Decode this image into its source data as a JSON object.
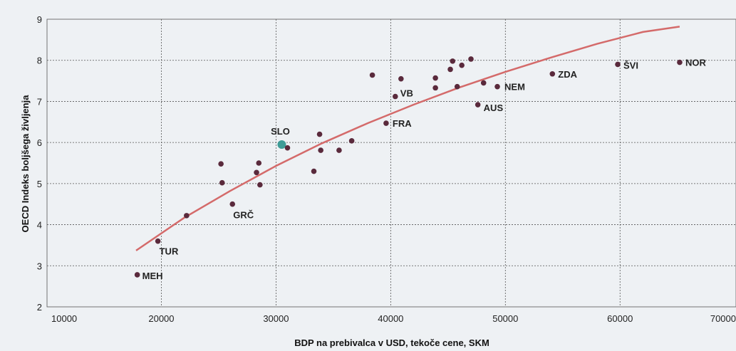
{
  "chart_data": {
    "type": "scatter",
    "title": "",
    "xlabel": "BDP na prebivalca v USD, tekoče cene, SKM",
    "ylabel": "OECD Indeks boljšega življenja",
    "xlim": [
      10000,
      70000
    ],
    "ylim": [
      2,
      9
    ],
    "xticks": [
      "10000",
      "20000",
      "30000",
      "40000",
      "50000",
      "60000",
      "70000"
    ],
    "yticks": [
      "2",
      "3",
      "4",
      "5",
      "6",
      "7",
      "8",
      "9"
    ],
    "grid": true,
    "colors": {
      "points": "#5a2a3c",
      "highlight": "#3e9c97",
      "trend": "#d46a6a",
      "grid": "#555555"
    },
    "points": [
      {
        "x": 17900,
        "y": 2.78,
        "label": "MEH"
      },
      {
        "x": 19700,
        "y": 3.6,
        "label": "TUR"
      },
      {
        "x": 22200,
        "y": 4.22,
        "label": ""
      },
      {
        "x": 25200,
        "y": 5.48,
        "label": ""
      },
      {
        "x": 25300,
        "y": 5.02,
        "label": ""
      },
      {
        "x": 26200,
        "y": 4.5,
        "label": "GRČ"
      },
      {
        "x": 28300,
        "y": 5.27,
        "label": ""
      },
      {
        "x": 28500,
        "y": 5.5,
        "label": ""
      },
      {
        "x": 28600,
        "y": 4.97,
        "label": ""
      },
      {
        "x": 30500,
        "y": 5.95,
        "label": "SLO",
        "highlight": true
      },
      {
        "x": 31000,
        "y": 5.87,
        "label": ""
      },
      {
        "x": 33300,
        "y": 5.3,
        "label": ""
      },
      {
        "x": 33800,
        "y": 6.2,
        "label": ""
      },
      {
        "x": 33900,
        "y": 5.81,
        "label": ""
      },
      {
        "x": 35500,
        "y": 5.81,
        "label": ""
      },
      {
        "x": 36600,
        "y": 6.04,
        "label": ""
      },
      {
        "x": 38400,
        "y": 7.64,
        "label": ""
      },
      {
        "x": 39600,
        "y": 6.47,
        "label": "FRA"
      },
      {
        "x": 40400,
        "y": 7.12,
        "label": "VB"
      },
      {
        "x": 40900,
        "y": 7.55,
        "label": ""
      },
      {
        "x": 43900,
        "y": 7.57,
        "label": ""
      },
      {
        "x": 43900,
        "y": 7.33,
        "label": ""
      },
      {
        "x": 45200,
        "y": 7.78,
        "label": ""
      },
      {
        "x": 45400,
        "y": 7.98,
        "label": ""
      },
      {
        "x": 45800,
        "y": 7.36,
        "label": ""
      },
      {
        "x": 46200,
        "y": 7.88,
        "label": ""
      },
      {
        "x": 47000,
        "y": 8.03,
        "label": ""
      },
      {
        "x": 47600,
        "y": 6.92,
        "label": "AUS"
      },
      {
        "x": 48100,
        "y": 7.45,
        "label": ""
      },
      {
        "x": 49300,
        "y": 7.36,
        "label": "NEM"
      },
      {
        "x": 54100,
        "y": 7.67,
        "label": "ZDA"
      },
      {
        "x": 59800,
        "y": 7.9,
        "label": "ŠVI"
      },
      {
        "x": 65200,
        "y": 7.95,
        "label": "NOR"
      }
    ],
    "trendline": {
      "type": "logarithmic",
      "x": [
        17800,
        22000,
        26000,
        30000,
        34000,
        38000,
        42000,
        46000,
        50000,
        54000,
        58000,
        62000,
        65200
      ],
      "y": [
        3.37,
        4.17,
        4.82,
        5.43,
        5.98,
        6.47,
        6.92,
        7.34,
        7.72,
        8.07,
        8.4,
        8.69,
        8.82
      ]
    }
  }
}
